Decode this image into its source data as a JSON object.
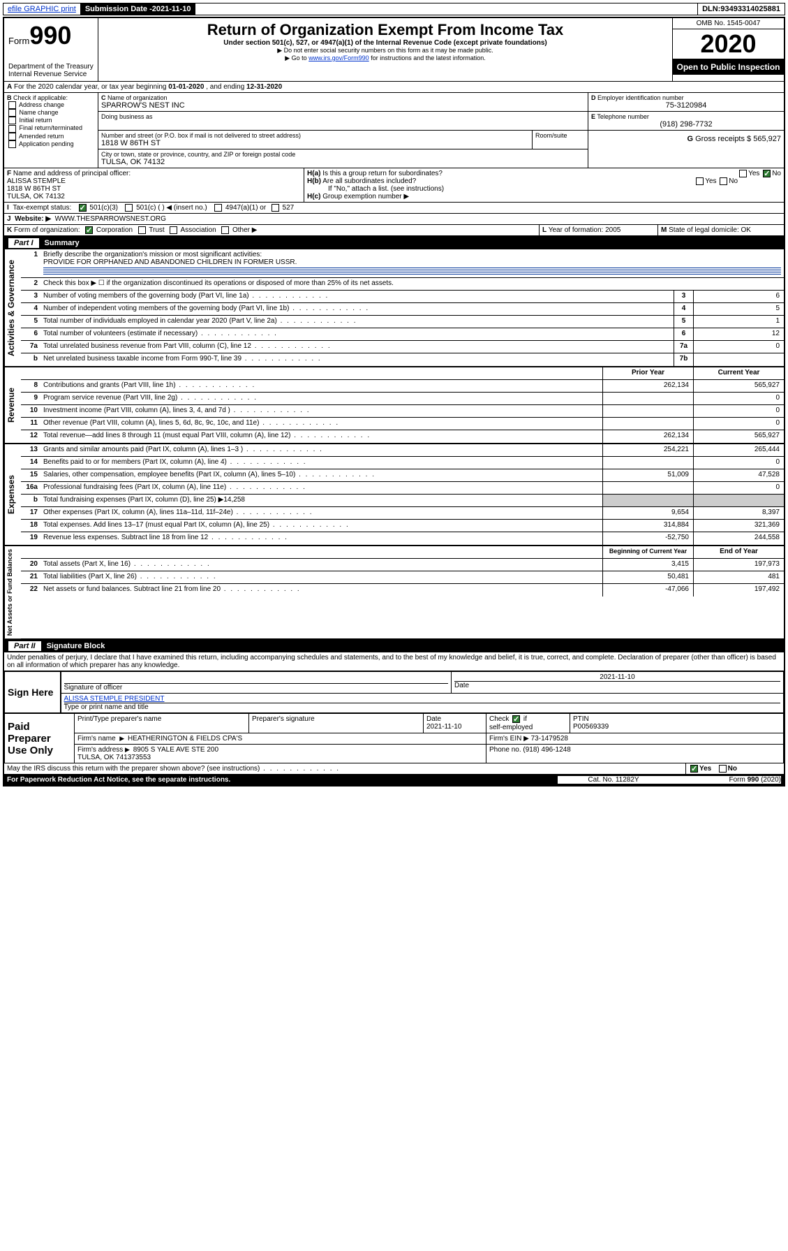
{
  "topbar": {
    "efile": "efile GRAPHIC print",
    "subdate_label": "Submission Date - ",
    "subdate": "2021-11-10",
    "dln_label": "DLN: ",
    "dln": "93493314025881"
  },
  "header": {
    "form_word": "Form",
    "form_no": "990",
    "title": "Return of Organization Exempt From Income Tax",
    "sub1": "Under section 501(c), 527, or 4947(a)(1) of the Internal Revenue Code (except private foundations)",
    "sub2": "▶ Do not enter social security numbers on this form as it may be made public.",
    "sub3_pre": "▶ Go to ",
    "sub3_link": "www.irs.gov/Form990",
    "sub3_post": " for instructions and the latest information.",
    "dept": "Department of the Treasury\nInternal Revenue Service",
    "omb": "OMB No. 1545-0047",
    "year": "2020",
    "open": "Open to Public Inspection"
  },
  "A": {
    "text_pre": "For the 2020 calendar year, or tax year beginning ",
    "beg": "01-01-2020",
    "mid": " , and ending ",
    "end": "12-31-2020"
  },
  "B": {
    "label": "Check if applicable:",
    "opts": [
      "Address change",
      "Name change",
      "Initial return",
      "Final return/terminated",
      "Amended return",
      "Application pending"
    ]
  },
  "C": {
    "name_lbl": "Name of organization",
    "name": "SPARROW'S NEST INC",
    "dba_lbl": "Doing business as",
    "addr_lbl": "Number and street (or P.O. box if mail is not delivered to street address)",
    "room_lbl": "Room/suite",
    "addr": "1818 W 86TH ST",
    "city_lbl": "City or town, state or province, country, and ZIP or foreign postal code",
    "city": "TULSA, OK  74132"
  },
  "D": {
    "lbl": "Employer identification number",
    "val": "75-3120984"
  },
  "E": {
    "lbl": "Telephone number",
    "val": "(918) 298-7732"
  },
  "G": {
    "lbl": "Gross receipts $",
    "val": "565,927"
  },
  "F": {
    "lbl": "Name and address of principal officer:",
    "name": "ALISSA STEMPLE",
    "addr1": "1818 W 86TH ST",
    "addr2": "TULSA, OK  74132"
  },
  "H": {
    "a": "Is this a group return for subordinates?",
    "b": "Are all subordinates included?",
    "b_note": "If \"No,\" attach a list. (see instructions)",
    "c": "Group exemption number ▶"
  },
  "I": {
    "lbl": "Tax-exempt status:",
    "opts": [
      "501(c)(3)",
      "501(c) (  ) ◀ (insert no.)",
      "4947(a)(1) or",
      "527"
    ]
  },
  "J": {
    "lbl": "Website: ▶",
    "val": "WWW.THESPARROWSNEST.ORG"
  },
  "K": {
    "lbl": "Form of organization:",
    "opts": [
      "Corporation",
      "Trust",
      "Association",
      "Other ▶"
    ]
  },
  "L": {
    "lbl": "Year of formation:",
    "val": "2005"
  },
  "M": {
    "lbl": "State of legal domicile:",
    "val": "OK"
  },
  "part1": {
    "hdr": "Summary",
    "l1_lbl": "Briefly describe the organization's mission or most significant activities:",
    "l1_val": "PROVIDE FOR ORPHANED AND ABANDONED CHILDREN IN FORMER USSR.",
    "l2": "Check this box ▶ ☐  if the organization discontinued its operations or disposed of more than 25% of its net assets.",
    "rows_gov": [
      {
        "n": "3",
        "t": "Number of voting members of the governing body (Part VI, line 1a)",
        "b": "3",
        "v": "6"
      },
      {
        "n": "4",
        "t": "Number of independent voting members of the governing body (Part VI, line 1b)",
        "b": "4",
        "v": "5"
      },
      {
        "n": "5",
        "t": "Total number of individuals employed in calendar year 2020 (Part V, line 2a)",
        "b": "5",
        "v": "1"
      },
      {
        "n": "6",
        "t": "Total number of volunteers (estimate if necessary)",
        "b": "6",
        "v": "12"
      },
      {
        "n": "7a",
        "t": "Total unrelated business revenue from Part VIII, column (C), line 12",
        "b": "7a",
        "v": "0"
      },
      {
        "n": "b",
        "t": "Net unrelated business taxable income from Form 990-T, line 39",
        "b": "7b",
        "v": ""
      }
    ],
    "col_prior": "Prior Year",
    "col_curr": "Current Year",
    "rows_rev": [
      {
        "n": "8",
        "t": "Contributions and grants (Part VIII, line 1h)",
        "p": "262,134",
        "c": "565,927"
      },
      {
        "n": "9",
        "t": "Program service revenue (Part VIII, line 2g)",
        "p": "",
        "c": "0"
      },
      {
        "n": "10",
        "t": "Investment income (Part VIII, column (A), lines 3, 4, and 7d )",
        "p": "",
        "c": "0"
      },
      {
        "n": "11",
        "t": "Other revenue (Part VIII, column (A), lines 5, 6d, 8c, 9c, 10c, and 11e)",
        "p": "",
        "c": "0"
      },
      {
        "n": "12",
        "t": "Total revenue—add lines 8 through 11 (must equal Part VIII, column (A), line 12)",
        "p": "262,134",
        "c": "565,927"
      }
    ],
    "rows_exp": [
      {
        "n": "13",
        "t": "Grants and similar amounts paid (Part IX, column (A), lines 1–3 )",
        "p": "254,221",
        "c": "265,444"
      },
      {
        "n": "14",
        "t": "Benefits paid to or for members (Part IX, column (A), line 4)",
        "p": "",
        "c": "0"
      },
      {
        "n": "15",
        "t": "Salaries, other compensation, employee benefits (Part IX, column (A), lines 5–10)",
        "p": "51,009",
        "c": "47,528"
      },
      {
        "n": "16a",
        "t": "Professional fundraising fees (Part IX, column (A), line 11e)",
        "p": "",
        "c": "0"
      },
      {
        "n": "b",
        "t": "Total fundraising expenses (Part IX, column (D), line 25) ▶14,258",
        "p": null,
        "c": null
      },
      {
        "n": "17",
        "t": "Other expenses (Part IX, column (A), lines 11a–11d, 11f–24e)",
        "p": "9,654",
        "c": "8,397"
      },
      {
        "n": "18",
        "t": "Total expenses. Add lines 13–17 (must equal Part IX, column (A), line 25)",
        "p": "314,884",
        "c": "321,369"
      },
      {
        "n": "19",
        "t": "Revenue less expenses. Subtract line 18 from line 12",
        "p": "-52,750",
        "c": "244,558"
      }
    ],
    "col_beg": "Beginning of Current Year",
    "col_end": "End of Year",
    "rows_net": [
      {
        "n": "20",
        "t": "Total assets (Part X, line 16)",
        "p": "3,415",
        "c": "197,973"
      },
      {
        "n": "21",
        "t": "Total liabilities (Part X, line 26)",
        "p": "50,481",
        "c": "481"
      },
      {
        "n": "22",
        "t": "Net assets or fund balances. Subtract line 21 from line 20",
        "p": "-47,066",
        "c": "197,492"
      }
    ],
    "vlabels": {
      "gov": "Activities & Governance",
      "rev": "Revenue",
      "exp": "Expenses",
      "net": "Net Assets or Fund Balances"
    }
  },
  "part2": {
    "hdr": "Signature Block",
    "perjury": "Under penalties of perjury, I declare that I have examined this return, including accompanying schedules and statements, and to the best of my knowledge and belief, it is true, correct, and complete. Declaration of preparer (other than officer) is based on all information of which preparer has any knowledge.",
    "sign_here": "Sign Here",
    "sig_officer": "Signature of officer",
    "sig_date": "2021-11-10",
    "date_lbl": "Date",
    "officer_name": "ALISSA STEMPLE  PRESIDENT",
    "type_name": "Type or print name and title",
    "paid": "Paid Preparer Use Only",
    "prep_name_lbl": "Print/Type preparer's name",
    "prep_sig_lbl": "Preparer's signature",
    "prep_date": "2021-11-10",
    "check_self": "Check ☑ if self-employed",
    "ptin_lbl": "PTIN",
    "ptin": "P00569339",
    "firm_name_lbl": "Firm's name",
    "firm_name": "HEATHERINGTON & FIELDS CPA'S",
    "firm_ein_lbl": "Firm's EIN ▶",
    "firm_ein": "73-1479528",
    "firm_addr_lbl": "Firm's address",
    "firm_addr": "8905 S YALE AVE STE 200\nTULSA, OK  741373553",
    "phone_lbl": "Phone no.",
    "phone": "(918) 496-1248",
    "discuss": "May the IRS discuss this return with the preparer shown above? (see instructions)",
    "paperwork": "For Paperwork Reduction Act Notice, see the separate instructions.",
    "cat": "Cat. No. 11282Y",
    "form_foot": "Form 990 (2020)"
  },
  "labels": {
    "yes": "Yes",
    "no": "No"
  }
}
